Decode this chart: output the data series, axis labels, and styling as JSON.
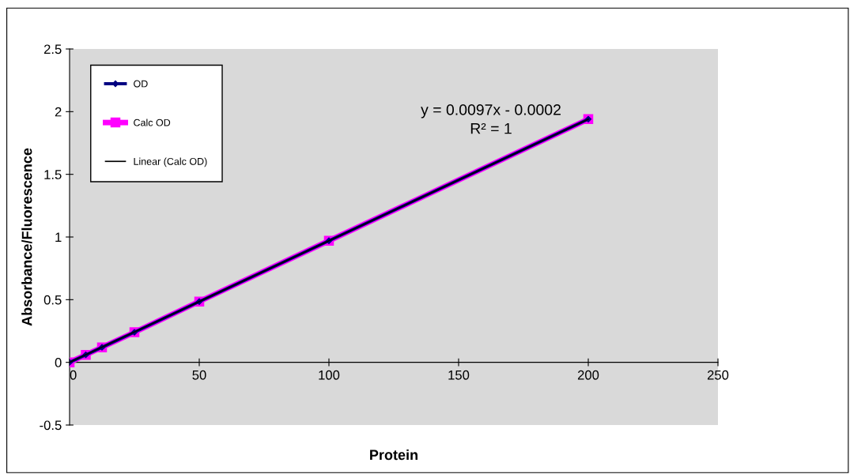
{
  "chart_data": {
    "type": "line",
    "xlabel": "Protein",
    "ylabel": "Absorbance/Fluorescence",
    "x": [
      0,
      6.25,
      12.5,
      25,
      50,
      100,
      200
    ],
    "series": [
      {
        "name": "OD",
        "color": "#000080",
        "marker": "diamond",
        "values": [
          0,
          0.06,
          0.12,
          0.24,
          0.485,
          0.97,
          1.94
        ]
      },
      {
        "name": "Calc OD",
        "color": "#ff00ff",
        "marker": "square",
        "values": [
          0,
          0.06,
          0.12,
          0.24,
          0.485,
          0.97,
          1.94
        ]
      },
      {
        "name": "Linear (Calc OD)",
        "color": "#000000",
        "x": [
          0,
          200
        ],
        "values": [
          0,
          1.94
        ]
      }
    ],
    "xlim": [
      0,
      250
    ],
    "xticks": [
      0,
      50,
      100,
      150,
      200,
      250
    ],
    "ylim": [
      -0.5,
      2.5
    ],
    "yticks": [
      -0.5,
      0,
      0.5,
      1,
      1.5,
      2,
      2.5
    ],
    "annotations": [
      "y = 0.0097x - 0.0002",
      "R² = 1"
    ],
    "grid": false,
    "legend": "top left"
  }
}
